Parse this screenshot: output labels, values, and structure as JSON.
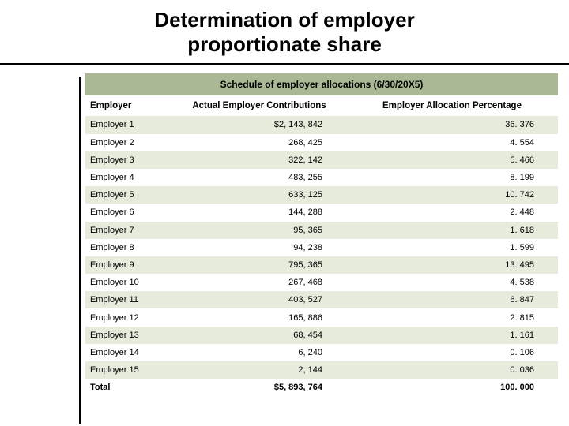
{
  "title_line1": "Determination of employer",
  "title_line2": "proportionate share",
  "table": {
    "schedule_header": "Schedule of employer allocations (6/30/20X5)",
    "columns": [
      "Employer",
      "Actual Employer Contributions",
      "Employer Allocation Percentage"
    ],
    "rows": [
      [
        "Employer 1",
        "$2, 143, 842",
        "36. 376"
      ],
      [
        "Employer 2",
        "268, 425",
        "4. 554"
      ],
      [
        "Employer 3",
        "322, 142",
        "5. 466"
      ],
      [
        "Employer 4",
        "483, 255",
        "8. 199"
      ],
      [
        "Employer 5",
        "633, 125",
        "10. 742"
      ],
      [
        "Employer 6",
        "144, 288",
        "2. 448"
      ],
      [
        "Employer 7",
        "95, 365",
        "1. 618"
      ],
      [
        "Employer 8",
        "94, 238",
        "1. 599"
      ],
      [
        "Employer 9",
        "795, 365",
        "13. 495"
      ],
      [
        "Employer 10",
        "267, 468",
        "4. 538"
      ],
      [
        "Employer 11",
        "403, 527",
        "6. 847"
      ],
      [
        "Employer 12",
        "165, 886",
        "2. 815"
      ],
      [
        "Employer 13",
        "68, 454",
        "1. 161"
      ],
      [
        "Employer 14",
        "6, 240",
        "0. 106"
      ],
      [
        "Employer 15",
        "2, 144",
        "0. 036"
      ]
    ],
    "total": [
      "Total",
      "$5, 893, 764",
      "100. 000"
    ],
    "band_colors": {
      "even": "#e6ebdc",
      "odd": "#ffffff",
      "header": "#aab896"
    }
  }
}
